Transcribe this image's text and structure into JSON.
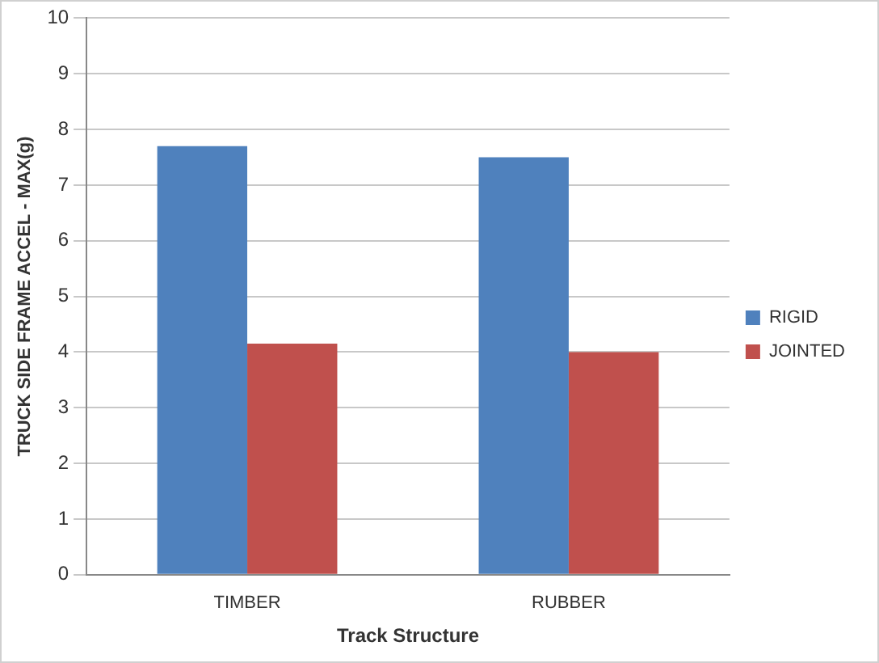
{
  "chart_data": {
    "type": "bar",
    "xlabel": "Track Structure",
    "ylabel": "TRUCK SIDE FRAME ACCEL - MAX(g)",
    "categories": [
      "TIMBER",
      "RUBBER"
    ],
    "series": [
      {
        "name": "RIGID",
        "color": "#4f81bd",
        "values": [
          7.7,
          7.5
        ]
      },
      {
        "name": "JOINTED",
        "color": "#c0504d",
        "values": [
          4.15,
          4.0
        ]
      }
    ],
    "ylim": [
      0,
      10
    ],
    "yticks": [
      0,
      1,
      2,
      3,
      4,
      5,
      6,
      7,
      8,
      9,
      10
    ],
    "grid": "y",
    "legend": "right"
  }
}
